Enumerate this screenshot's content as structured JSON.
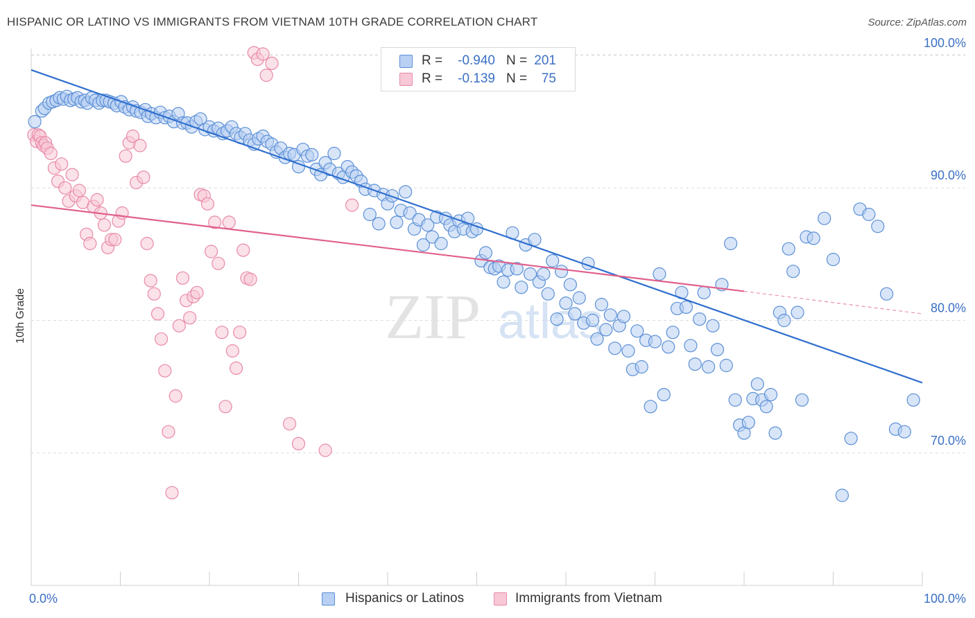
{
  "title": "HISPANIC OR LATINO VS IMMIGRANTS FROM VIETNAM 10TH GRADE CORRELATION CHART",
  "source": "Source: ZipAtlas.com",
  "watermark": {
    "zip": "ZIP",
    "atlas": "atlas"
  },
  "legend": {
    "r_label": "R =",
    "n_label": "N =",
    "rows": [
      {
        "r": "-0.940",
        "n": "201"
      },
      {
        "r": "-0.139",
        "n": "75"
      }
    ]
  },
  "colors": {
    "blue_fill": "#b8d0f3",
    "blue_stroke": "#5b8fd6",
    "blue_line": "#2f6fcf",
    "pink_fill": "#f8c8d6",
    "pink_stroke": "#e889a8",
    "pink_line": "#e0608c",
    "grid": "#dcdcdc",
    "tick_label": "#3b6fc4",
    "axis_text": "#333333"
  },
  "chart_data": {
    "type": "scatter",
    "title": "HISPANIC OR LATINO VS IMMIGRANTS FROM VIETNAM 10TH GRADE CORRELATION CHART",
    "xlabel": "",
    "ylabel": "10th Grade",
    "xlim": [
      0,
      100
    ],
    "ylim": [
      60,
      102
    ],
    "x_tick_labels": [
      "0.0%",
      "100.0%"
    ],
    "y_ticks": [
      70,
      80,
      90,
      100
    ],
    "y_tick_labels": [
      "70.0%",
      "80.0%",
      "90.0%",
      "100.0%"
    ],
    "grid": true,
    "legend_position": "top-center and bottom",
    "series": [
      {
        "name": "Hispanics or Latinos",
        "color": "#5b8fd6",
        "R": -0.94,
        "N": 201,
        "trend": {
          "x": [
            0,
            100
          ],
          "y": [
            98.9,
            75.3
          ]
        },
        "points": [
          [
            0.4,
            95
          ],
          [
            1.2,
            95.8
          ],
          [
            1.5,
            96
          ],
          [
            2,
            96.4
          ],
          [
            2.4,
            96.5
          ],
          [
            2.8,
            96.6
          ],
          [
            3.2,
            96.8
          ],
          [
            3.6,
            96.7
          ],
          [
            4,
            96.9
          ],
          [
            4.4,
            96.6
          ],
          [
            4.8,
            96.7
          ],
          [
            5.2,
            96.8
          ],
          [
            5.6,
            96.5
          ],
          [
            6,
            96.6
          ],
          [
            6.3,
            96.4
          ],
          [
            6.8,
            96.8
          ],
          [
            7.2,
            96.6
          ],
          [
            7.6,
            96.4
          ],
          [
            8,
            96.6
          ],
          [
            8.4,
            96.6
          ],
          [
            8.8,
            96.5
          ],
          [
            9.3,
            96.4
          ],
          [
            9.6,
            96.2
          ],
          [
            10.1,
            96.5
          ],
          [
            10.5,
            96.1
          ],
          [
            11,
            95.9
          ],
          [
            11.4,
            96.1
          ],
          [
            11.8,
            95.8
          ],
          [
            12.3,
            95.7
          ],
          [
            12.8,
            95.9
          ],
          [
            13.1,
            95.4
          ],
          [
            13.5,
            95.6
          ],
          [
            14,
            95.3
          ],
          [
            14.5,
            95.7
          ],
          [
            15,
            95.3
          ],
          [
            15.5,
            95.4
          ],
          [
            16,
            95
          ],
          [
            16.5,
            95.6
          ],
          [
            17,
            94.9
          ],
          [
            17.5,
            94.9
          ],
          [
            18,
            94.6
          ],
          [
            18.5,
            95
          ],
          [
            19,
            95.2
          ],
          [
            19.5,
            94.4
          ],
          [
            20,
            94.6
          ],
          [
            20.5,
            94.3
          ],
          [
            21,
            94.5
          ],
          [
            21.5,
            94.1
          ],
          [
            22,
            94.3
          ],
          [
            22.5,
            94.6
          ],
          [
            23,
            94.1
          ],
          [
            23.5,
            93.8
          ],
          [
            24,
            94.1
          ],
          [
            24.5,
            93.6
          ],
          [
            25,
            93.3
          ],
          [
            25.5,
            93.7
          ],
          [
            26,
            93.9
          ],
          [
            26.5,
            93.5
          ],
          [
            27,
            93.3
          ],
          [
            27.5,
            92.7
          ],
          [
            28,
            93
          ],
          [
            28.5,
            92.3
          ],
          [
            29,
            92.6
          ],
          [
            29.5,
            92.5
          ],
          [
            30,
            91.6
          ],
          [
            30.5,
            92.9
          ],
          [
            31,
            92.4
          ],
          [
            31.5,
            92.5
          ],
          [
            32,
            91.4
          ],
          [
            32.5,
            91
          ],
          [
            33,
            91.9
          ],
          [
            33.5,
            91.4
          ],
          [
            34,
            92.6
          ],
          [
            34.5,
            91.1
          ],
          [
            35,
            90.8
          ],
          [
            35.5,
            91.6
          ],
          [
            36,
            91.2
          ],
          [
            36.5,
            90.9
          ],
          [
            37,
            90.5
          ],
          [
            37.5,
            89.9
          ],
          [
            38,
            88
          ],
          [
            38.5,
            89.8
          ],
          [
            39,
            87.3
          ],
          [
            39.5,
            89.5
          ],
          [
            40,
            88.8
          ],
          [
            40.5,
            89.4
          ],
          [
            41,
            87.4
          ],
          [
            41.5,
            88.3
          ],
          [
            42,
            89.7
          ],
          [
            42.5,
            88.1
          ],
          [
            43,
            86.9
          ],
          [
            43.5,
            87.6
          ],
          [
            44,
            85.7
          ],
          [
            44.5,
            87.2
          ],
          [
            45,
            86.3
          ],
          [
            45.5,
            87.8
          ],
          [
            46,
            85.8
          ],
          [
            46.5,
            87.7
          ],
          [
            47,
            87.2
          ],
          [
            47.5,
            86.7
          ],
          [
            48,
            87.5
          ],
          [
            48.5,
            86.9
          ],
          [
            49,
            87.7
          ],
          [
            49.5,
            86.7
          ],
          [
            50,
            86.9
          ],
          [
            50.5,
            84.5
          ],
          [
            51,
            85.1
          ],
          [
            51.5,
            84
          ],
          [
            52,
            83.9
          ],
          [
            52.5,
            84.1
          ],
          [
            53,
            82.9
          ],
          [
            53.5,
            83.8
          ],
          [
            54,
            86.6
          ],
          [
            54.5,
            83.9
          ],
          [
            55,
            82.5
          ],
          [
            55.5,
            85.7
          ],
          [
            56,
            83.5
          ],
          [
            56.5,
            86.1
          ],
          [
            57,
            82.9
          ],
          [
            57.5,
            83.5
          ],
          [
            58,
            82
          ],
          [
            58.5,
            84.5
          ],
          [
            59,
            80.1
          ],
          [
            59.5,
            83.7
          ],
          [
            60,
            81.3
          ],
          [
            60.5,
            82.7
          ],
          [
            61,
            80.5
          ],
          [
            61.5,
            81.7
          ],
          [
            62,
            79.8
          ],
          [
            62.5,
            84.3
          ],
          [
            63,
            80
          ],
          [
            63.5,
            78.6
          ],
          [
            64,
            81.2
          ],
          [
            64.5,
            79.3
          ],
          [
            65,
            80.4
          ],
          [
            65.5,
            77.9
          ],
          [
            66,
            79.6
          ],
          [
            66.5,
            80.3
          ],
          [
            67,
            77.7
          ],
          [
            67.5,
            76.3
          ],
          [
            68,
            79.2
          ],
          [
            68.5,
            76.5
          ],
          [
            69,
            78.5
          ],
          [
            69.5,
            73.5
          ],
          [
            70,
            78.4
          ],
          [
            70.5,
            83.5
          ],
          [
            71,
            74.4
          ],
          [
            71.5,
            78
          ],
          [
            72,
            79.1
          ],
          [
            72.5,
            80.9
          ],
          [
            73,
            82.1
          ],
          [
            73.5,
            81
          ],
          [
            74,
            78.1
          ],
          [
            74.5,
            76.7
          ],
          [
            75,
            80.1
          ],
          [
            75.5,
            82.1
          ],
          [
            76,
            76.5
          ],
          [
            76.5,
            79.6
          ],
          [
            77,
            77.8
          ],
          [
            77.5,
            82.7
          ],
          [
            78,
            76.6
          ],
          [
            78.5,
            85.8
          ],
          [
            79,
            74
          ],
          [
            79.5,
            72.1
          ],
          [
            80,
            71.5
          ],
          [
            80.5,
            72.3
          ],
          [
            81,
            74.1
          ],
          [
            81.5,
            75.2
          ],
          [
            82,
            74
          ],
          [
            82.5,
            73.5
          ],
          [
            83,
            74.4
          ],
          [
            83.5,
            71.5
          ],
          [
            84,
            80.6
          ],
          [
            84.5,
            80
          ],
          [
            85,
            85.4
          ],
          [
            85.5,
            83.7
          ],
          [
            86,
            80.6
          ],
          [
            86.5,
            74
          ],
          [
            87,
            86.3
          ],
          [
            87.8,
            86.2
          ],
          [
            89,
            87.7
          ],
          [
            90,
            84.6
          ],
          [
            91,
            66.8
          ],
          [
            92,
            71.1
          ],
          [
            93,
            88.4
          ],
          [
            94,
            88
          ],
          [
            95,
            87.1
          ],
          [
            96,
            82
          ],
          [
            97,
            71.8
          ],
          [
            98,
            71.6
          ],
          [
            99,
            74
          ]
        ]
      },
      {
        "name": "Immigrants from Vietnam",
        "color": "#e889a8",
        "R": -0.139,
        "N": 75,
        "trend": {
          "x": [
            0,
            80,
            100
          ],
          "y": [
            88.7,
            82.2,
            80.5
          ]
        },
        "points": [
          [
            0.3,
            94
          ],
          [
            0.6,
            93.5
          ],
          [
            0.8,
            94
          ],
          [
            1,
            93.9
          ],
          [
            1.2,
            93.4
          ],
          [
            1.4,
            93.2
          ],
          [
            1.6,
            93.4
          ],
          [
            1.8,
            93
          ],
          [
            2.2,
            92.6
          ],
          [
            2.6,
            91.5
          ],
          [
            3,
            90.5
          ],
          [
            3.4,
            91.8
          ],
          [
            3.8,
            90
          ],
          [
            4.2,
            89
          ],
          [
            4.6,
            91
          ],
          [
            5,
            89.4
          ],
          [
            5.4,
            89.8
          ],
          [
            5.8,
            88.9
          ],
          [
            6.2,
            86.5
          ],
          [
            6.6,
            85.8
          ],
          [
            7,
            88.6
          ],
          [
            7.4,
            89.1
          ],
          [
            7.8,
            88.1
          ],
          [
            8.2,
            87.2
          ],
          [
            8.6,
            85.5
          ],
          [
            9,
            86.1
          ],
          [
            9.4,
            86.1
          ],
          [
            9.8,
            87.5
          ],
          [
            10.2,
            88.1
          ],
          [
            10.6,
            92.4
          ],
          [
            11,
            93.4
          ],
          [
            11.4,
            93.9
          ],
          [
            11.8,
            90.4
          ],
          [
            12.2,
            93.2
          ],
          [
            12.6,
            90.8
          ],
          [
            13,
            85.8
          ],
          [
            13.4,
            83
          ],
          [
            13.8,
            82
          ],
          [
            14.2,
            80.5
          ],
          [
            14.6,
            78.6
          ],
          [
            15,
            76.2
          ],
          [
            15.4,
            71.6
          ],
          [
            15.8,
            67
          ],
          [
            16.2,
            74.3
          ],
          [
            16.6,
            79.6
          ],
          [
            17,
            83.2
          ],
          [
            17.4,
            81.5
          ],
          [
            17.8,
            80.2
          ],
          [
            18.2,
            81.8
          ],
          [
            18.6,
            82.1
          ],
          [
            19,
            89.5
          ],
          [
            19.4,
            89.4
          ],
          [
            19.8,
            88.8
          ],
          [
            20.2,
            85.2
          ],
          [
            20.6,
            87.4
          ],
          [
            21,
            84.3
          ],
          [
            21.4,
            79.1
          ],
          [
            21.8,
            73.5
          ],
          [
            22.2,
            87.4
          ],
          [
            22.6,
            77.7
          ],
          [
            23,
            76.4
          ],
          [
            23.4,
            79.1
          ],
          [
            23.8,
            85.3
          ],
          [
            24.2,
            83.2
          ],
          [
            24.6,
            83.1
          ],
          [
            25,
            100.2
          ],
          [
            25.4,
            99.7
          ],
          [
            26,
            100.1
          ],
          [
            26.4,
            98.5
          ],
          [
            27,
            99.4
          ],
          [
            29,
            72.2
          ],
          [
            30,
            70.7
          ],
          [
            33,
            70.2
          ],
          [
            36,
            88.7
          ],
          [
            52.3,
            100.1
          ]
        ]
      }
    ]
  },
  "bottom_legend": [
    {
      "label": "Hispanics or Latinos"
    },
    {
      "label": "Immigrants from Vietnam"
    }
  ]
}
